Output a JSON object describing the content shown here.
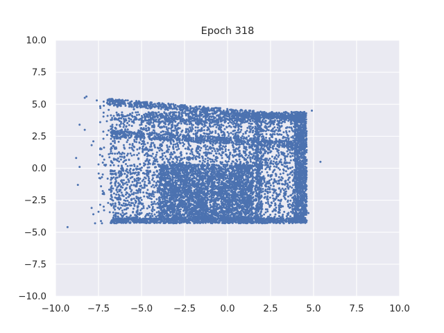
{
  "chart_data": {
    "type": "scatter",
    "title": "Epoch 318",
    "xlabel": "",
    "ylabel": "",
    "xlim": [
      -10,
      10
    ],
    "ylim": [
      -10,
      10
    ],
    "xticks": [
      -10,
      -7.5,
      -5,
      -2.5,
      0,
      2.5,
      5,
      7.5,
      10
    ],
    "yticks": [
      -10,
      -7.5,
      -5,
      -2.5,
      0,
      2.5,
      5,
      7.5,
      10
    ],
    "xtick_labels": [
      "−10.0",
      "−7.5",
      "−5.0",
      "−2.5",
      "0.0",
      "2.5",
      "5.0",
      "7.5",
      "10.0"
    ],
    "ytick_labels": [
      "−10.0",
      "−7.5",
      "−5.0",
      "−2.5",
      "0.0",
      "2.5",
      "5.0",
      "7.5",
      "10.0"
    ],
    "grid": true,
    "style": "seaborn-darkgrid",
    "colors": {
      "background": "#EAEAF2",
      "grid": "#FFFFFF",
      "point": "#4C72B0"
    },
    "series": [
      {
        "points": [
          [
            -9.3,
            -4.6
          ],
          [
            -8.6,
            3.4
          ],
          [
            -8.3,
            3.0
          ],
          [
            -8.2,
            5.6
          ],
          [
            -8.3,
            5.5
          ],
          [
            -8.8,
            0.8
          ],
          [
            -8.6,
            0.1
          ],
          [
            -8.7,
            -1.3
          ],
          [
            -7.8,
            2.1
          ],
          [
            -7.9,
            1.8
          ],
          [
            -7.6,
            5.3
          ],
          [
            -7.2,
            5.2
          ],
          [
            -7.0,
            5.1
          ],
          [
            -6.8,
            5.0
          ],
          [
            -7.4,
            1.5
          ],
          [
            -7.0,
            2.6
          ],
          [
            -7.8,
            -3.6
          ],
          [
            -7.5,
            -3.4
          ],
          [
            -7.7,
            -4.3
          ],
          [
            -7.3,
            -4.3
          ],
          [
            -6.9,
            1.1
          ],
          [
            -7.1,
            0.2
          ],
          [
            -7.3,
            -0.7
          ],
          [
            -6.8,
            -2.4
          ],
          [
            -7.2,
            -3.0
          ],
          [
            5.4,
            0.5
          ],
          [
            4.9,
            4.5
          ],
          [
            4.7,
            -3.5
          ],
          [
            -6.6,
            4.9
          ],
          [
            -6.4,
            4.8
          ],
          [
            -7.5,
            0.3
          ],
          [
            -7.9,
            -3.1
          ]
        ]
      }
    ]
  }
}
